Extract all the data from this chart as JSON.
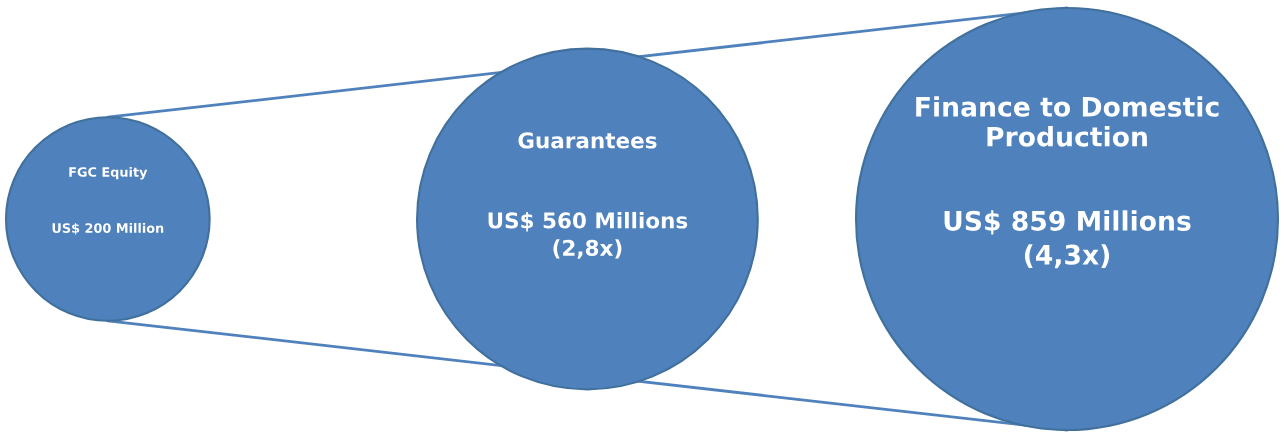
{
  "chart_data": {
    "type": "other",
    "categories": [
      "FGC Equity",
      "Guarantees",
      "Finance to Domestic\nProduction"
    ],
    "values": [
      200,
      560,
      859
    ],
    "value_labels": [
      "US$ 200 Million",
      "US$ 560 Millions\n(2,8x)",
      "US$ 859 Millions\n(4,3x)"
    ],
    "color": "#4f81bd"
  }
}
